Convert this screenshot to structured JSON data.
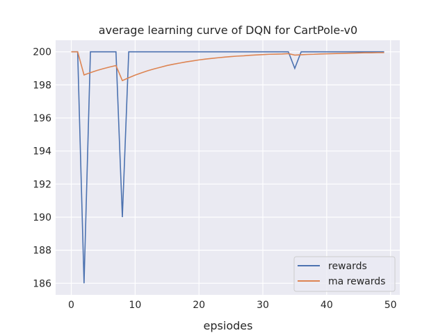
{
  "chart_data": {
    "type": "line",
    "title": "average learning curve of DQN for CartPole-v0",
    "xlabel": "epsiodes",
    "ylabel": "",
    "xlim": [
      -2.45,
      51.45
    ],
    "ylim": [
      185.3,
      200.7
    ],
    "xticks": [
      0,
      10,
      20,
      30,
      40,
      50
    ],
    "yticks": [
      186,
      188,
      190,
      192,
      194,
      196,
      198,
      200
    ],
    "grid": true,
    "legend_position": "lower-right",
    "background": "#eaeaf2",
    "x": [
      0,
      1,
      2,
      3,
      4,
      5,
      6,
      7,
      8,
      9,
      10,
      11,
      12,
      13,
      14,
      15,
      16,
      17,
      18,
      19,
      20,
      21,
      22,
      23,
      24,
      25,
      26,
      27,
      28,
      29,
      30,
      31,
      32,
      33,
      34,
      35,
      36,
      37,
      38,
      39,
      40,
      41,
      42,
      43,
      44,
      45,
      46,
      47,
      48,
      49
    ],
    "series": [
      {
        "name": "rewards",
        "color": "#4c72b0",
        "values": [
          200,
          200,
          186,
          200,
          200,
          200,
          200,
          200,
          190,
          200,
          200,
          200,
          200,
          200,
          200,
          200,
          200,
          200,
          200,
          200,
          200,
          200,
          200,
          200,
          200,
          200,
          200,
          200,
          200,
          200,
          200,
          200,
          200,
          200,
          200,
          199,
          200,
          200,
          200,
          200,
          200,
          200,
          200,
          200,
          200,
          200,
          200,
          200,
          200,
          200
        ]
      },
      {
        "name": "ma rewards",
        "color": "#dd8452",
        "values": [
          200,
          200,
          198.6,
          198.74,
          198.87,
          198.98,
          199.08,
          199.17,
          198.26,
          198.43,
          198.59,
          198.73,
          198.86,
          198.97,
          199.07,
          199.17,
          199.25,
          199.32,
          199.39,
          199.45,
          199.51,
          199.56,
          199.6,
          199.64,
          199.68,
          199.71,
          199.74,
          199.76,
          199.79,
          199.81,
          199.83,
          199.85,
          199.86,
          199.87,
          199.89,
          199.8,
          199.82,
          199.84,
          199.85,
          199.87,
          199.88,
          199.89,
          199.9,
          199.91,
          199.92,
          199.93,
          199.94,
          199.94,
          199.95,
          199.95
        ]
      }
    ]
  }
}
